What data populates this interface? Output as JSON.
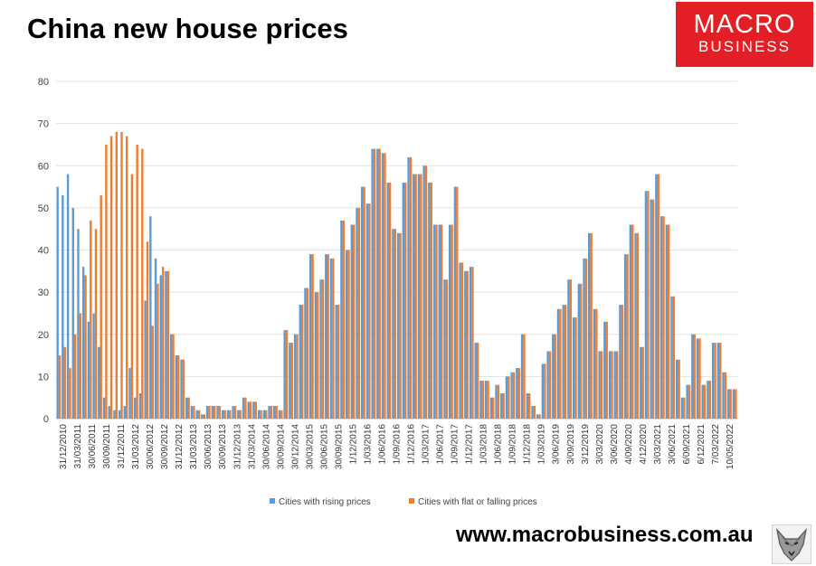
{
  "chart_data": {
    "type": "bar",
    "title": "China new house prices",
    "xlabel": "",
    "ylabel": "",
    "ylim": [
      0,
      80
    ],
    "yticks": [
      0,
      10,
      20,
      30,
      40,
      50,
      60,
      70,
      80
    ],
    "grid": true,
    "legend_position": "bottom-center",
    "tick_labels": [
      "31/12/2010",
      "31/03/2011",
      "30/06/2011",
      "30/09/2011",
      "31/12/2011",
      "31/03/2012",
      "30/06/2012",
      "30/09/2012",
      "31/12/2012",
      "31/03/2013",
      "30/06/2013",
      "30/09/2013",
      "31/12/2013",
      "31/03/2014",
      "30/06/2014",
      "30/09/2014",
      "30/12/2014",
      "30/03/2015",
      "30/06/2015",
      "30/09/2015",
      "1/12/2015",
      "1/03/2016",
      "1/06/2016",
      "1/09/2016",
      "1/12/2016",
      "1/03/2017",
      "1/06/2017",
      "1/09/2017",
      "1/12/2017",
      "1/03/2018",
      "1/06/2018",
      "1/09/2018",
      "1/12/2018",
      "1/03/2019",
      "3/06/2019",
      "3/09/2019",
      "3/12/2019",
      "3/03/2020",
      "3/06/2020",
      "4/09/2020",
      "4/12/2020",
      "3/03/2021",
      "3/06/2021",
      "6/09/2021",
      "6/12/2021",
      "7/03/2022",
      "10/05/2022"
    ],
    "series": [
      {
        "name": "Cities with rising prices",
        "color": "#5b9bd5",
        "values": [
          55,
          53,
          58,
          50,
          45,
          36,
          23,
          25,
          17,
          5,
          3,
          2,
          2,
          3,
          12,
          5,
          6,
          28,
          48,
          38,
          34,
          35,
          20,
          15,
          14,
          5,
          3,
          2,
          1,
          3,
          3,
          3,
          2,
          2,
          3,
          2,
          5,
          4,
          4,
          2,
          2,
          3,
          3,
          2,
          21,
          18,
          20,
          27,
          31,
          39,
          30,
          33,
          39,
          38,
          27,
          47,
          40,
          46,
          50,
          55,
          51,
          64,
          64,
          63,
          56,
          45,
          44,
          56,
          62,
          58,
          58,
          60,
          56,
          46,
          46,
          33,
          46,
          55,
          37,
          35,
          36,
          18,
          9,
          9,
          5,
          8,
          6,
          10,
          11,
          12,
          20,
          6,
          3,
          1,
          13,
          16,
          20,
          26,
          27,
          33,
          24,
          32,
          38,
          44,
          26,
          16,
          23,
          16,
          16,
          27,
          39,
          46,
          44,
          17,
          54,
          52,
          58,
          48,
          46,
          29,
          14,
          5,
          8,
          20,
          19,
          8,
          9,
          18,
          18,
          11,
          7,
          7
        ]
      },
      {
        "name": "Cities with flat or falling prices",
        "color": "#ed7d31",
        "values": [
          15,
          17,
          12,
          20,
          25,
          34,
          47,
          45,
          53,
          65,
          67,
          68,
          68,
          67,
          58,
          65,
          64,
          42,
          22,
          32,
          36,
          35,
          20,
          15,
          14,
          5,
          3,
          2,
          1,
          3,
          3,
          3,
          2,
          2,
          3,
          2,
          5,
          4,
          4,
          2,
          2,
          3,
          3,
          2,
          21,
          18,
          20,
          27,
          31,
          39,
          30,
          33,
          39,
          38,
          27,
          47,
          40,
          46,
          50,
          55,
          51,
          64,
          64,
          63,
          56,
          45,
          44,
          56,
          62,
          58,
          58,
          60,
          56,
          46,
          46,
          33,
          46,
          55,
          37,
          35,
          36,
          18,
          9,
          9,
          5,
          8,
          6,
          10,
          11,
          12,
          20,
          6,
          3,
          1,
          13,
          16,
          20,
          26,
          27,
          33,
          24,
          32,
          38,
          44,
          26,
          16,
          23,
          16,
          16,
          27,
          39,
          46,
          44,
          17,
          54,
          52,
          58,
          48,
          46,
          29,
          14,
          5,
          8,
          20,
          19,
          8,
          9,
          18,
          18,
          11,
          7,
          7
        ]
      }
    ]
  },
  "logo": {
    "line1": "MACRO",
    "line2": "BUSINESS"
  },
  "footer": {
    "url": "www.macrobusiness.com.au"
  },
  "icons": {
    "footer_logo": "fox-head-icon"
  }
}
